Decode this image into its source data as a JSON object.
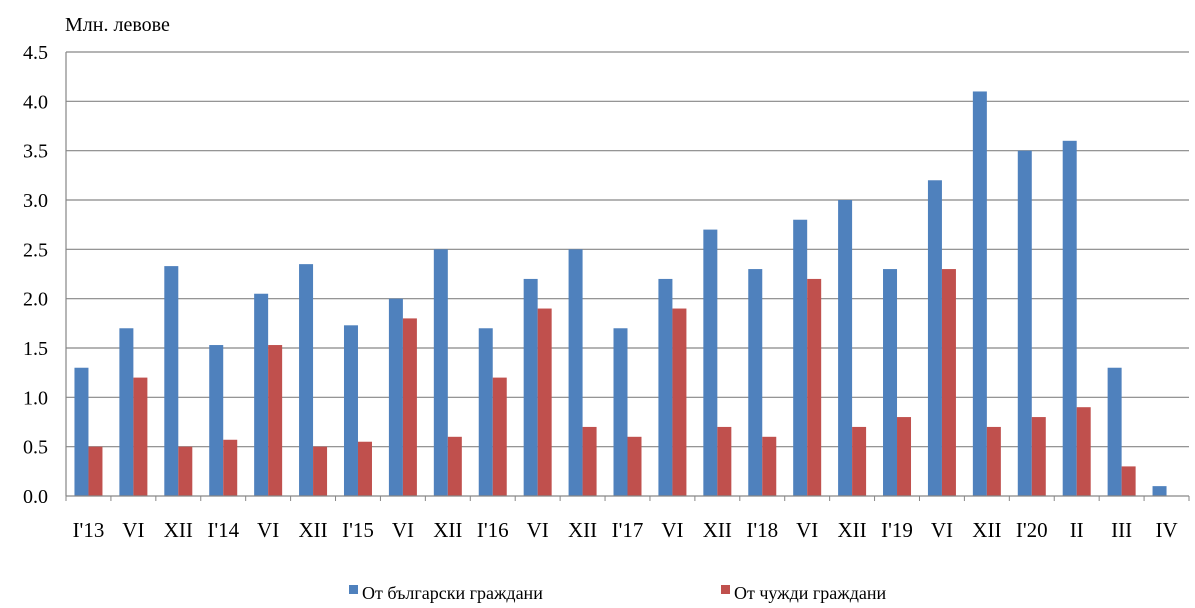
{
  "chart_data": {
    "type": "bar",
    "ylabel": "Млн. левове",
    "xlabel": "",
    "ylim": [
      0,
      4.5
    ],
    "yticks": [
      "0.0",
      "0.5",
      "1.0",
      "1.5",
      "2.0",
      "2.5",
      "3.0",
      "3.5",
      "4.0",
      "4.5"
    ],
    "grid": true,
    "legend_position": "bottom",
    "categories": [
      "I'13",
      "VI",
      "XII",
      "I'14",
      "VI",
      "XII",
      "I'15",
      "VI",
      "XII",
      "I'16",
      "VI",
      "XII",
      "I'17",
      "VI",
      "XII",
      "I'18",
      "VI",
      "XII",
      "I'19",
      "VI",
      "XII",
      "I'20",
      "II",
      "III",
      "IV"
    ],
    "series": [
      {
        "name": "От български граждани",
        "color": "#4F81BD",
        "values": [
          1.3,
          1.7,
          2.33,
          1.53,
          2.05,
          2.35,
          1.73,
          2.0,
          2.5,
          1.7,
          2.2,
          2.5,
          1.7,
          2.2,
          2.7,
          2.3,
          2.8,
          3.0,
          2.3,
          3.2,
          4.1,
          3.5,
          3.6,
          1.3,
          0.1
        ]
      },
      {
        "name": "От чужди граждани",
        "color": "#C0504D",
        "values": [
          0.5,
          1.2,
          0.5,
          0.57,
          1.53,
          0.5,
          0.55,
          1.8,
          0.6,
          1.2,
          1.9,
          0.7,
          0.6,
          1.9,
          0.7,
          0.6,
          2.2,
          0.7,
          0.8,
          2.3,
          0.7,
          0.8,
          0.9,
          0.3,
          0.0
        ]
      }
    ]
  }
}
